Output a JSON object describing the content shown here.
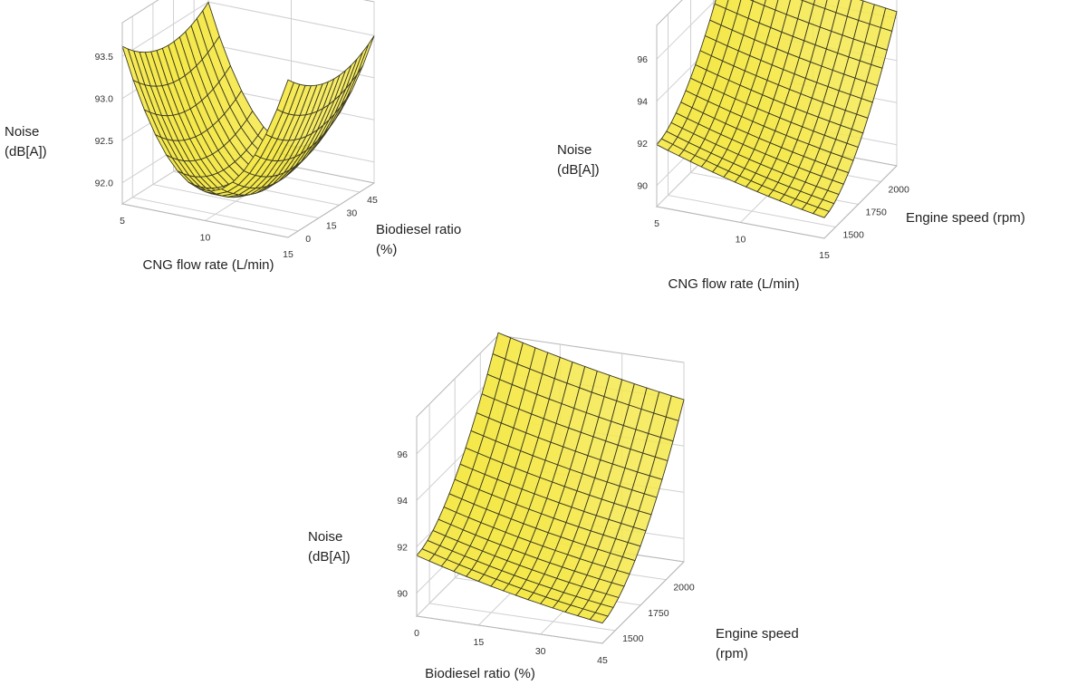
{
  "chart_data": [
    {
      "type": "surface",
      "x": {
        "label": "CNG flow rate (L/min)",
        "ticks": [
          "5",
          "10",
          "15"
        ],
        "range": [
          5,
          15
        ]
      },
      "y": {
        "label": [
          "Biodiesel ratio",
          "(%)"
        ],
        "ticks": [
          "0",
          "15",
          "30",
          "45"
        ],
        "range": [
          0,
          45
        ]
      },
      "z": {
        "label": [
          "Noise",
          "(dB[A])"
        ],
        "ticks": [
          "92.0",
          "92.5",
          "93.0",
          "93.5"
        ],
        "range": [
          91.8,
          94.0
        ]
      },
      "surface": {
        "min": 91.9,
        "at_x": 10,
        "at_y": 22,
        "front_left": 93.6,
        "front_right": 93.6,
        "back_left": 93.3,
        "back_right": 93.4
      },
      "color": "#f5e84a",
      "mesh_color": "#3a3a22",
      "grid": true
    },
    {
      "type": "surface",
      "x": {
        "label": "CNG flow rate (L/min)",
        "ticks": [
          "5",
          "10",
          "15"
        ],
        "range": [
          5,
          15
        ]
      },
      "y": {
        "label": [
          "Engine speed (rpm)"
        ],
        "ticks": [
          "1500",
          "1750",
          "2000"
        ],
        "range": [
          1400,
          2100
        ]
      },
      "z": {
        "label": [
          "Noise",
          "(dB[A])"
        ],
        "ticks": [
          "90",
          "92",
          "94",
          "96"
        ],
        "range": [
          90,
          98
        ]
      },
      "surface": {
        "front_left": 92.3,
        "front_right": 90.9,
        "back_left": 97.8,
        "back_right": 96.8
      },
      "color": "#f5e84a",
      "mesh_color": "#3a3a22",
      "grid": true
    },
    {
      "type": "surface",
      "x": {
        "label": "Biodiesel ratio (%)",
        "ticks": [
          "0",
          "15",
          "30",
          "45"
        ],
        "range": [
          0,
          45
        ]
      },
      "y": {
        "label": [
          "Engine speed",
          "(rpm)"
        ],
        "ticks": [
          "1500",
          "1750",
          "2000"
        ],
        "range": [
          1400,
          2100
        ]
      },
      "z": {
        "label": [
          "Noise",
          "(dB[A])"
        ],
        "ticks": [
          "90",
          "92",
          "94",
          "96"
        ],
        "range": [
          90,
          98
        ]
      },
      "surface": {
        "front_left": 92.0,
        "front_right": 90.8,
        "back_left": 97.8,
        "back_right": 96.5
      },
      "color": "#f5e84a",
      "mesh_color": "#3a3a22",
      "grid": true
    }
  ]
}
